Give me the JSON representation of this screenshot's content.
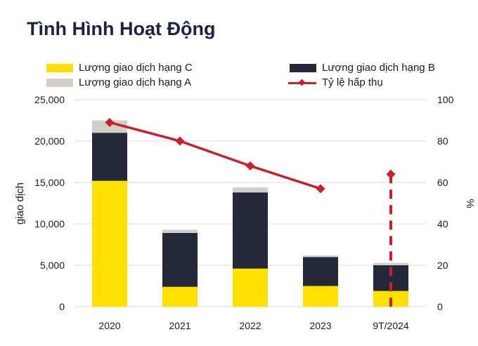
{
  "chart_data": {
    "title": "Tình Hình Hoạt Động",
    "type": "bar",
    "stacked": true,
    "categories": [
      "2020",
      "2021",
      "2022",
      "2023",
      "9T/2024"
    ],
    "series": [
      {
        "name": "Lượng giao dịch hạng C",
        "color": "#ffe000",
        "values": [
          15200,
          2400,
          4600,
          2500,
          1900
        ]
      },
      {
        "name": "Lượng giao dịch hạng B",
        "color": "#252839",
        "values": [
          5800,
          6500,
          9200,
          3500,
          3100
        ]
      },
      {
        "name": "Lượng giao dịch hạng A",
        "color": "#d2ceca",
        "values": [
          1500,
          400,
          600,
          200,
          300
        ]
      }
    ],
    "line_series": {
      "name": "Tỷ lệ hấp thụ",
      "color": "#c8202d",
      "axis": "right",
      "values": [
        89,
        80,
        68,
        57,
        64
      ],
      "dashed_from_index": 4
    },
    "ylabel": "giao dịch",
    "y2label": "%",
    "ylim": [
      0,
      25000
    ],
    "y2lim": [
      0,
      100
    ],
    "yticks": [
      "0",
      "5,000",
      "10,000",
      "15,000",
      "20,000",
      "25,000"
    ],
    "y2ticks": [
      "0",
      "20",
      "40",
      "60",
      "80",
      "100"
    ],
    "grid": true,
    "legend_position": "top"
  }
}
